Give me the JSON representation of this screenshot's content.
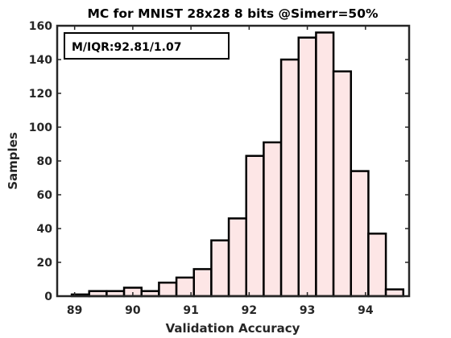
{
  "chart_data": {
    "type": "bar",
    "title": "MC for MNIST 28x28 8 bits @Simerr=50%",
    "xlabel": "Validation Accuracy",
    "ylabel": "Samples",
    "xlim": [
      88.7,
      94.75
    ],
    "ylim": [
      0,
      160
    ],
    "xticks": [
      "89",
      "90",
      "91",
      "92",
      "93",
      "94"
    ],
    "yticks": [
      "0",
      "20",
      "40",
      "60",
      "80",
      "100",
      "120",
      "140",
      "160"
    ],
    "grid": false,
    "annotation": "M/IQR:92.81/1.07",
    "colors": {
      "bar_fill": "#fde6e6",
      "bar_edge": "#000000",
      "axis": "#262626"
    },
    "bins": [
      {
        "left": 88.95,
        "right": 89.25,
        "value": 1
      },
      {
        "left": 89.25,
        "right": 89.55,
        "value": 3
      },
      {
        "left": 89.55,
        "right": 89.85,
        "value": 3
      },
      {
        "left": 89.85,
        "right": 90.15,
        "value": 5
      },
      {
        "left": 90.15,
        "right": 90.45,
        "value": 3
      },
      {
        "left": 90.45,
        "right": 90.75,
        "value": 8
      },
      {
        "left": 90.75,
        "right": 91.05,
        "value": 11
      },
      {
        "left": 91.05,
        "right": 91.35,
        "value": 16
      },
      {
        "left": 91.35,
        "right": 91.65,
        "value": 33
      },
      {
        "left": 91.65,
        "right": 91.95,
        "value": 46
      },
      {
        "left": 91.95,
        "right": 92.25,
        "value": 83
      },
      {
        "left": 92.25,
        "right": 92.55,
        "value": 91
      },
      {
        "left": 92.55,
        "right": 92.85,
        "value": 140
      },
      {
        "left": 92.85,
        "right": 93.15,
        "value": 153
      },
      {
        "left": 93.15,
        "right": 93.45,
        "value": 156
      },
      {
        "left": 93.45,
        "right": 93.75,
        "value": 133
      },
      {
        "left": 93.75,
        "right": 94.05,
        "value": 74
      },
      {
        "left": 94.05,
        "right": 94.35,
        "value": 37
      },
      {
        "left": 94.35,
        "right": 94.65,
        "value": 4
      }
    ]
  }
}
